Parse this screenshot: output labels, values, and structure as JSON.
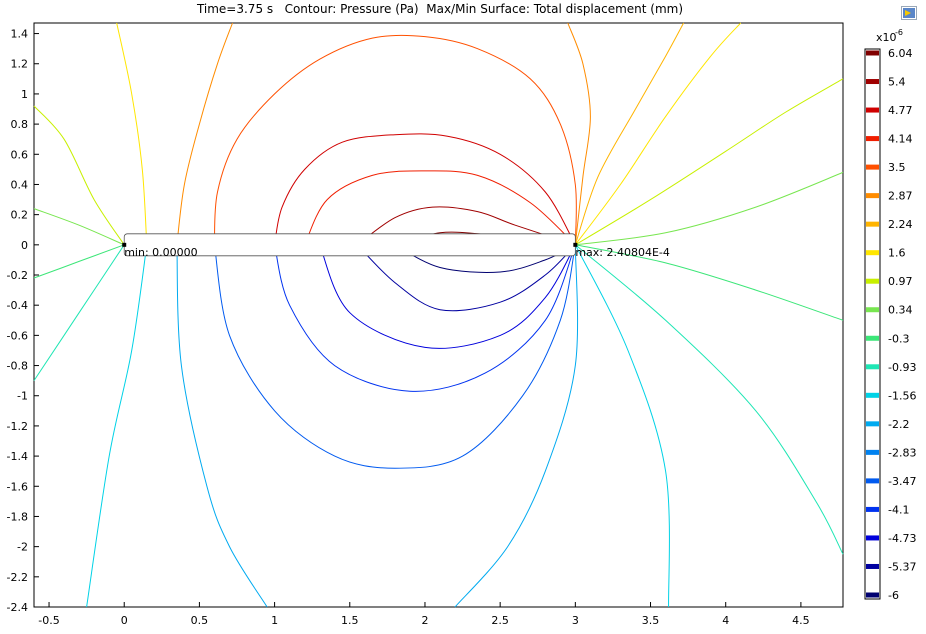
{
  "window": {
    "title": "Time=3.75 s   Contour: Pressure (Pa)  Max/Min Surface: Total displacement (mm)"
  },
  "icons": {
    "export": "export-image-icon"
  },
  "chart_data": {
    "type": "contour",
    "title": "Time=3.75 s   Contour: Pressure (Pa)  Max/Min Surface: Total displacement (mm)",
    "xlim": [
      -0.6,
      4.78
    ],
    "ylim": [
      -2.4,
      1.47
    ],
    "xticks": [
      "-0.5",
      "0",
      "0.5",
      "1",
      "1.5",
      "2",
      "2.5",
      "3",
      "3.5",
      "4",
      "4.5"
    ],
    "yticks": [
      "1.4",
      "1.2",
      "1",
      "0.8",
      "0.6",
      "0.4",
      "0.2",
      "0",
      "-0.2",
      "-0.4",
      "-0.6",
      "-0.8",
      "-1",
      "-1.2",
      "-1.4",
      "-1.6",
      "-1.8",
      "-2",
      "-2.2",
      "-2.4"
    ],
    "grid": false,
    "colorbar": {
      "exponent": "x10",
      "exponent_power": "-6",
      "levels": [
        {
          "label": "6.04",
          "value": 6.04,
          "color": "#800000"
        },
        {
          "label": "5.4",
          "value": 5.4,
          "color": "#a00000"
        },
        {
          "label": "4.77",
          "value": 4.77,
          "color": "#d00000"
        },
        {
          "label": "4.14",
          "value": 4.14,
          "color": "#f01e00"
        },
        {
          "label": "3.5",
          "value": 3.5,
          "color": "#ff5000"
        },
        {
          "label": "2.87",
          "value": 2.87,
          "color": "#ff8c00"
        },
        {
          "label": "2.24",
          "value": 2.24,
          "color": "#ffb400"
        },
        {
          "label": "1.6",
          "value": 1.6,
          "color": "#ffe600"
        },
        {
          "label": "0.97",
          "value": 0.97,
          "color": "#c8f000"
        },
        {
          "label": "0.34",
          "value": 0.34,
          "color": "#78e650"
        },
        {
          "label": "-0.3",
          "value": -0.3,
          "color": "#3ce678"
        },
        {
          "label": "-0.93",
          "value": -0.93,
          "color": "#1ee6b4"
        },
        {
          "label": "-1.56",
          "value": -1.56,
          "color": "#00d2e6"
        },
        {
          "label": "-2.2",
          "value": -2.2,
          "color": "#00aaf0"
        },
        {
          "label": "-2.83",
          "value": -2.83,
          "color": "#0082f0"
        },
        {
          "label": "-3.47",
          "value": -3.47,
          "color": "#005af0"
        },
        {
          "label": "-4.1",
          "value": -4.1,
          "color": "#0032f0"
        },
        {
          "label": "-4.73",
          "value": -4.73,
          "color": "#0000dc"
        },
        {
          "label": "-5.37",
          "value": -5.37,
          "color": "#0000a0"
        },
        {
          "label": "-6",
          "value": -6,
          "color": "#000070"
        }
      ]
    },
    "beam": {
      "x0": 0,
      "x1": 3,
      "y": 0
    },
    "annotations": [
      {
        "label": "min: 0.00000",
        "x": 0,
        "y": 0
      },
      {
        "label": "max: 2.40804E-4",
        "x": 3,
        "y": 0
      }
    ],
    "contour_lines": [
      {
        "color": "#d00000",
        "points": [
          [
            1.0,
            0
          ],
          [
            1.05,
            0.25
          ],
          [
            1.2,
            0.5
          ],
          [
            1.45,
            0.68
          ],
          [
            1.8,
            0.73
          ],
          [
            2.15,
            0.72
          ],
          [
            2.5,
            0.6
          ],
          [
            2.8,
            0.35
          ],
          [
            3.0,
            0
          ]
        ]
      },
      {
        "color": "#f01e00",
        "points": [
          [
            1.2,
            0
          ],
          [
            1.35,
            0.3
          ],
          [
            1.65,
            0.46
          ],
          [
            2.0,
            0.49
          ],
          [
            2.35,
            0.46
          ],
          [
            2.7,
            0.28
          ],
          [
            3.0,
            0
          ]
        ]
      },
      {
        "color": "#a00000",
        "points": [
          [
            1.55,
            0
          ],
          [
            1.8,
            0.18
          ],
          [
            2.05,
            0.25
          ],
          [
            2.35,
            0.22
          ],
          [
            2.6,
            0.13
          ],
          [
            3.0,
            0
          ]
        ]
      },
      {
        "color": "#800000",
        "points": [
          [
            1.85,
            0
          ],
          [
            2.1,
            0.08
          ],
          [
            2.4,
            0.07
          ],
          [
            2.7,
            0.04
          ],
          [
            3.0,
            0
          ]
        ]
      },
      {
        "color": "#ff5000",
        "points": [
          [
            0.6,
            0
          ],
          [
            0.62,
            0.35
          ],
          [
            0.75,
            0.7
          ],
          [
            1.0,
            1.0
          ],
          [
            1.3,
            1.23
          ],
          [
            1.65,
            1.37
          ],
          [
            2.0,
            1.38
          ],
          [
            2.35,
            1.3
          ],
          [
            2.7,
            1.1
          ],
          [
            2.9,
            0.8
          ],
          [
            3.0,
            0.4
          ],
          [
            3.0,
            0
          ]
        ]
      },
      {
        "color": "#ff8c00",
        "points": [
          [
            0.35,
            0
          ],
          [
            0.4,
            0.4
          ],
          [
            0.5,
            0.8
          ],
          [
            0.62,
            1.2
          ],
          [
            0.72,
            1.47
          ]
        ]
      },
      {
        "color": "#ff8c00",
        "points": [
          [
            3.0,
            0
          ],
          [
            3.05,
            0.45
          ],
          [
            3.1,
            0.85
          ],
          [
            3.05,
            1.2
          ],
          [
            2.95,
            1.47
          ]
        ]
      },
      {
        "color": "#ffe600",
        "points": [
          [
            0.15,
            0
          ],
          [
            0.12,
            0.5
          ],
          [
            0.05,
            1.0
          ],
          [
            -0.05,
            1.47
          ]
        ]
      },
      {
        "color": "#ffe600",
        "points": [
          [
            3.0,
            0
          ],
          [
            3.3,
            0.4
          ],
          [
            3.6,
            0.85
          ],
          [
            3.9,
            1.25
          ],
          [
            4.1,
            1.47
          ]
        ]
      },
      {
        "color": "#ffb400",
        "points": [
          [
            3.0,
            0
          ],
          [
            3.15,
            0.45
          ],
          [
            3.4,
            0.9
          ],
          [
            3.6,
            1.25
          ],
          [
            3.72,
            1.47
          ]
        ]
      },
      {
        "color": "#c8f000",
        "points": [
          [
            0,
            0
          ],
          [
            -0.2,
            0.3
          ],
          [
            -0.4,
            0.7
          ],
          [
            -0.6,
            0.92
          ]
        ]
      },
      {
        "color": "#c8f000",
        "points": [
          [
            3.0,
            0
          ],
          [
            3.5,
            0.3
          ],
          [
            4.0,
            0.62
          ],
          [
            4.4,
            0.88
          ],
          [
            4.78,
            1.1
          ]
        ]
      },
      {
        "color": "#78e650",
        "points": [
          [
            0,
            0
          ],
          [
            -0.3,
            0.13
          ],
          [
            -0.6,
            0.24
          ]
        ]
      },
      {
        "color": "#78e650",
        "points": [
          [
            3.0,
            0
          ],
          [
            3.6,
            0.08
          ],
          [
            4.2,
            0.25
          ],
          [
            4.78,
            0.48
          ]
        ]
      },
      {
        "color": "#3ce678",
        "points": [
          [
            0,
            0
          ],
          [
            -0.3,
            -0.11
          ],
          [
            -0.6,
            -0.22
          ]
        ]
      },
      {
        "color": "#3ce678",
        "points": [
          [
            3.0,
            0
          ],
          [
            3.6,
            -0.12
          ],
          [
            4.2,
            -0.3
          ],
          [
            4.78,
            -0.5
          ]
        ]
      },
      {
        "color": "#1ee6b4",
        "points": [
          [
            0,
            0
          ],
          [
            -0.3,
            -0.45
          ],
          [
            -0.6,
            -0.9
          ]
        ]
      },
      {
        "color": "#1ee6b4",
        "points": [
          [
            3.0,
            0
          ],
          [
            3.6,
            -0.5
          ],
          [
            4.2,
            -1.1
          ],
          [
            4.6,
            -1.7
          ],
          [
            4.78,
            -2.05
          ]
        ]
      },
      {
        "color": "#00d2e6",
        "points": [
          [
            0.15,
            0
          ],
          [
            0.05,
            -0.7
          ],
          [
            -0.1,
            -1.4
          ],
          [
            -0.25,
            -2.4
          ]
        ]
      },
      {
        "color": "#00d2e6",
        "points": [
          [
            3.0,
            0
          ],
          [
            3.35,
            -0.7
          ],
          [
            3.6,
            -1.5
          ],
          [
            3.62,
            -2.4
          ]
        ]
      },
      {
        "color": "#00aaf0",
        "points": [
          [
            0.35,
            0
          ],
          [
            0.38,
            -0.8
          ],
          [
            0.55,
            -1.6
          ],
          [
            0.7,
            -2.0
          ],
          [
            0.95,
            -2.4
          ]
        ]
      },
      {
        "color": "#00aaf0",
        "points": [
          [
            3.0,
            0
          ],
          [
            3.0,
            -0.8
          ],
          [
            2.8,
            -1.5
          ],
          [
            2.55,
            -2.0
          ],
          [
            2.2,
            -2.4
          ]
        ]
      },
      {
        "color": "#005af0",
        "points": [
          [
            0.6,
            0
          ],
          [
            0.7,
            -0.6
          ],
          [
            1.0,
            -1.1
          ],
          [
            1.4,
            -1.4
          ],
          [
            1.8,
            -1.48
          ],
          [
            2.25,
            -1.4
          ],
          [
            2.65,
            -1.0
          ],
          [
            2.9,
            -0.5
          ],
          [
            3.0,
            0
          ]
        ]
      },
      {
        "color": "#0032f0",
        "points": [
          [
            1.0,
            0
          ],
          [
            1.1,
            -0.4
          ],
          [
            1.4,
            -0.8
          ],
          [
            1.9,
            -0.97
          ],
          [
            2.4,
            -0.85
          ],
          [
            2.8,
            -0.5
          ],
          [
            3.0,
            0
          ]
        ]
      },
      {
        "color": "#0000dc",
        "points": [
          [
            1.3,
            0
          ],
          [
            1.5,
            -0.45
          ],
          [
            2.0,
            -0.68
          ],
          [
            2.5,
            -0.6
          ],
          [
            2.8,
            -0.35
          ],
          [
            3.0,
            0
          ]
        ]
      },
      {
        "color": "#0000a0",
        "points": [
          [
            1.55,
            0
          ],
          [
            1.8,
            -0.25
          ],
          [
            2.1,
            -0.43
          ],
          [
            2.5,
            -0.38
          ],
          [
            2.8,
            -0.2
          ],
          [
            3.0,
            0
          ]
        ]
      },
      {
        "color": "#000070",
        "points": [
          [
            1.8,
            0
          ],
          [
            2.1,
            -0.15
          ],
          [
            2.5,
            -0.18
          ],
          [
            2.8,
            -0.1
          ],
          [
            3.0,
            0
          ]
        ]
      }
    ]
  }
}
